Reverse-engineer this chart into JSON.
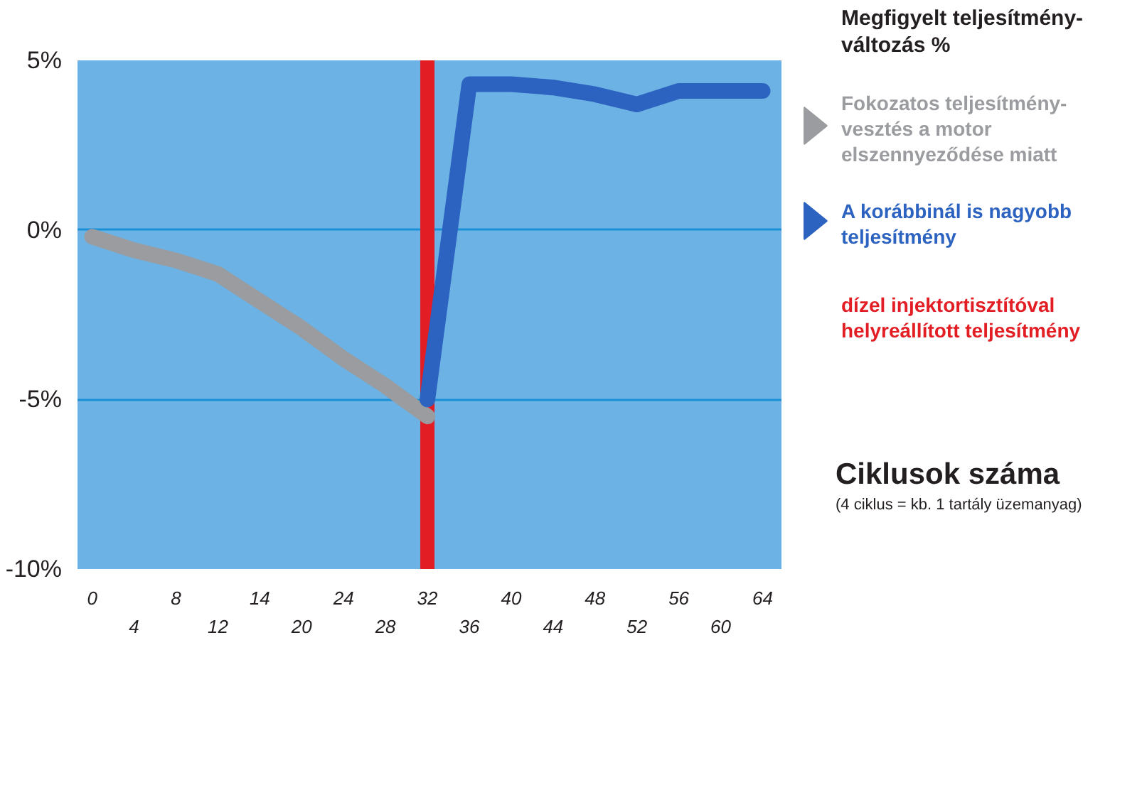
{
  "chart_data": {
    "type": "line",
    "title": "Megfigyelt teljesítmény-változás %",
    "xlabel": "Ciklusok száma",
    "annotations": [
      "(4 ciklus = kb. 1 tartály üzemanyag)"
    ],
    "categories": [
      "0",
      "4",
      "8",
      "12",
      "14",
      "20",
      "24",
      "28",
      "32",
      "36",
      "40",
      "44",
      "48",
      "52",
      "56",
      "60",
      "64"
    ],
    "ylim": [
      -10,
      5
    ],
    "yticks": [
      {
        "value": 5,
        "label": "5%"
      },
      {
        "value": 0,
        "label": "0%"
      },
      {
        "value": -5,
        "label": "-5%"
      },
      {
        "value": -10,
        "label": "-10%"
      }
    ],
    "grid": "y",
    "legend": "right",
    "series": [
      {
        "name": "Fokozatos teljesítmény-vesztés a motor elszennyeződése miatt",
        "color": "#9a9c9f",
        "values": [
          -0.2,
          -0.6,
          -0.9,
          -1.3,
          -2.1,
          -2.9,
          -3.8,
          -4.6,
          -5.5,
          null,
          null,
          null,
          null,
          null,
          null,
          null,
          null
        ]
      },
      {
        "name": "A korábbinál is nagyobb teljesítmény",
        "color": "#2c62c0",
        "values": [
          null,
          null,
          null,
          null,
          null,
          null,
          null,
          null,
          -5.0,
          4.3,
          4.3,
          4.2,
          4.0,
          3.7,
          4.1,
          4.1,
          4.1
        ]
      }
    ],
    "ref_lines": [
      {
        "axis": "x",
        "value": "32",
        "label": "dízel injektortisztítóval helyreállított teljesítmény",
        "color": "#e21d24"
      }
    ]
  }
}
